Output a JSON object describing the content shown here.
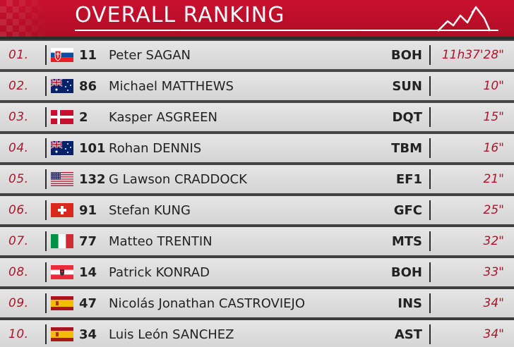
{
  "header": {
    "title": "OVERALL RANKING",
    "accent_color": "#c8102e"
  },
  "rows": [
    {
      "pos": "01.",
      "flag": "SVK",
      "number": "11",
      "name": "Peter SAGAN",
      "team": "BOH",
      "time": "11h37'28\""
    },
    {
      "pos": "02.",
      "flag": "AUS",
      "number": "86",
      "name": "Michael MATTHEWS",
      "team": "SUN",
      "time": "10\""
    },
    {
      "pos": "03.",
      "flag": "DEN",
      "number": "2",
      "name": "Kasper ASGREEN",
      "team": "DQT",
      "time": "15\""
    },
    {
      "pos": "04.",
      "flag": "AUS",
      "number": "101",
      "name": "Rohan DENNIS",
      "team": "TBM",
      "time": "16\""
    },
    {
      "pos": "05.",
      "flag": "USA",
      "number": "132",
      "name": "G Lawson CRADDOCK",
      "team": "EF1",
      "time": "21\""
    },
    {
      "pos": "06.",
      "flag": "SUI",
      "number": "91",
      "name": "Stefan KUNG",
      "team": "GFC",
      "time": "25\""
    },
    {
      "pos": "07.",
      "flag": "ITA",
      "number": "77",
      "name": "Matteo TRENTIN",
      "team": "MTS",
      "time": "32\""
    },
    {
      "pos": "08.",
      "flag": "AUT",
      "number": "14",
      "name": "Patrick KONRAD",
      "team": "BOH",
      "time": "33\""
    },
    {
      "pos": "09.",
      "flag": "ESP",
      "number": "47",
      "name": "Nicolás Jonathan CASTROVIEJO",
      "team": "INS",
      "time": "34\""
    },
    {
      "pos": "10.",
      "flag": "ESP",
      "number": "34",
      "name": "Luis León SANCHEZ",
      "team": "AST",
      "time": "34\""
    }
  ]
}
